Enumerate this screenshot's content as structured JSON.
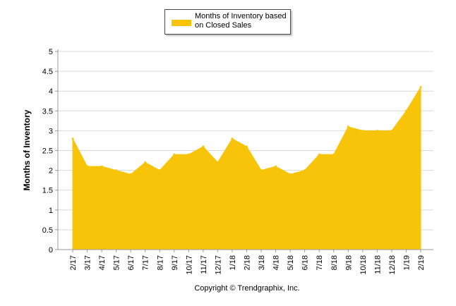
{
  "chart_data": {
    "type": "area",
    "categories": [
      "2/17",
      "3/17",
      "4/17",
      "5/17",
      "6/17",
      "7/17",
      "8/17",
      "9/17",
      "10/17",
      "11/17",
      "12/17",
      "1/18",
      "2/18",
      "3/18",
      "4/18",
      "5/18",
      "6/18",
      "7/18",
      "8/18",
      "9/18",
      "10/18",
      "11/18",
      "12/18",
      "1/19",
      "2/19"
    ],
    "series": [
      {
        "name": "Months of Inventory based on Closed Sales",
        "values": [
          2.8,
          2.1,
          2.1,
          2.0,
          1.9,
          2.2,
          2.0,
          2.4,
          2.4,
          2.6,
          2.2,
          2.8,
          2.6,
          2.0,
          2.1,
          1.9,
          2.0,
          2.4,
          2.4,
          3.1,
          3.0,
          3.0,
          3.0,
          3.5,
          4.1
        ],
        "color": "#f7c40a"
      }
    ],
    "title": "",
    "xlabel": "",
    "ylabel": "Months of Inventory",
    "ylim": [
      0,
      5
    ],
    "yticks": [
      "0",
      "0.5",
      "1",
      "1.5",
      "2",
      "2.5",
      "3",
      "3.5",
      "4",
      "4.5",
      "5"
    ],
    "grid": true,
    "legend": "top-center"
  },
  "legend": {
    "label": "Months of Inventory based\non Closed Sales",
    "color": "#f7c40a"
  },
  "footer": {
    "copyright": "Copyright © Trendgraphix, Inc."
  }
}
